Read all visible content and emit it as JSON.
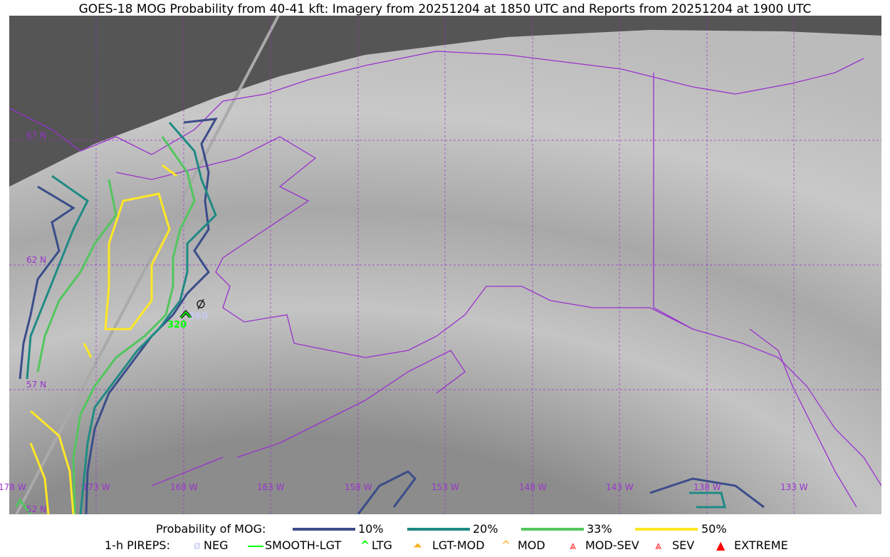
{
  "title": "GOES-18 MOG Probability from 40-41 kft: Imagery from 20251204 at 1850 UTC and Reports from 20251204 at 1900 UTC",
  "grid": {
    "lat_labels": [
      "67 N",
      "62 N",
      "57 N",
      "52 N"
    ],
    "lon_labels": [
      "178 W",
      "173 W",
      "168 W",
      "163 W",
      "158 W",
      "153 W",
      "148 W",
      "143 W",
      "138 W",
      "133 W"
    ],
    "color": "#9932cc"
  },
  "reports": [
    {
      "type": "LTG",
      "altitude": "320",
      "color": "#00ff00"
    },
    {
      "type": "NEG",
      "altitude": "360",
      "color": "#c8c8f0"
    }
  ],
  "legend": {
    "prob_title": "Probability of MOG:",
    "prob_levels": [
      {
        "label": "10%",
        "color": "#3b4d8a"
      },
      {
        "label": "20%",
        "color": "#1f8a84"
      },
      {
        "label": "33%",
        "color": "#52c65e"
      },
      {
        "label": "50%",
        "color": "#fde725"
      }
    ],
    "pirep_title": "1-h PIREPS:",
    "pireps": [
      {
        "label": "NEG",
        "icon": "neg-icon",
        "color": "#c8c8f0"
      },
      {
        "label": "SMOOTH-LGT",
        "icon": "line-icon",
        "color": "#00ff00"
      },
      {
        "label": "LTG",
        "icon": "caret-icon",
        "color": "#00ff00"
      },
      {
        "label": "LGT-MOD",
        "icon": "hat-icon",
        "color": "#ffb020"
      },
      {
        "label": "MOD",
        "icon": "hat-icon",
        "color": "#ffb020"
      },
      {
        "label": "MOD-SEV",
        "icon": "double-hat-icon",
        "color": "#ff2020"
      },
      {
        "label": "SEV",
        "icon": "double-hat-icon",
        "color": "#ff2020"
      },
      {
        "label": "EXTREME",
        "icon": "filled-triangle-icon",
        "color": "#ff0000"
      }
    ]
  }
}
